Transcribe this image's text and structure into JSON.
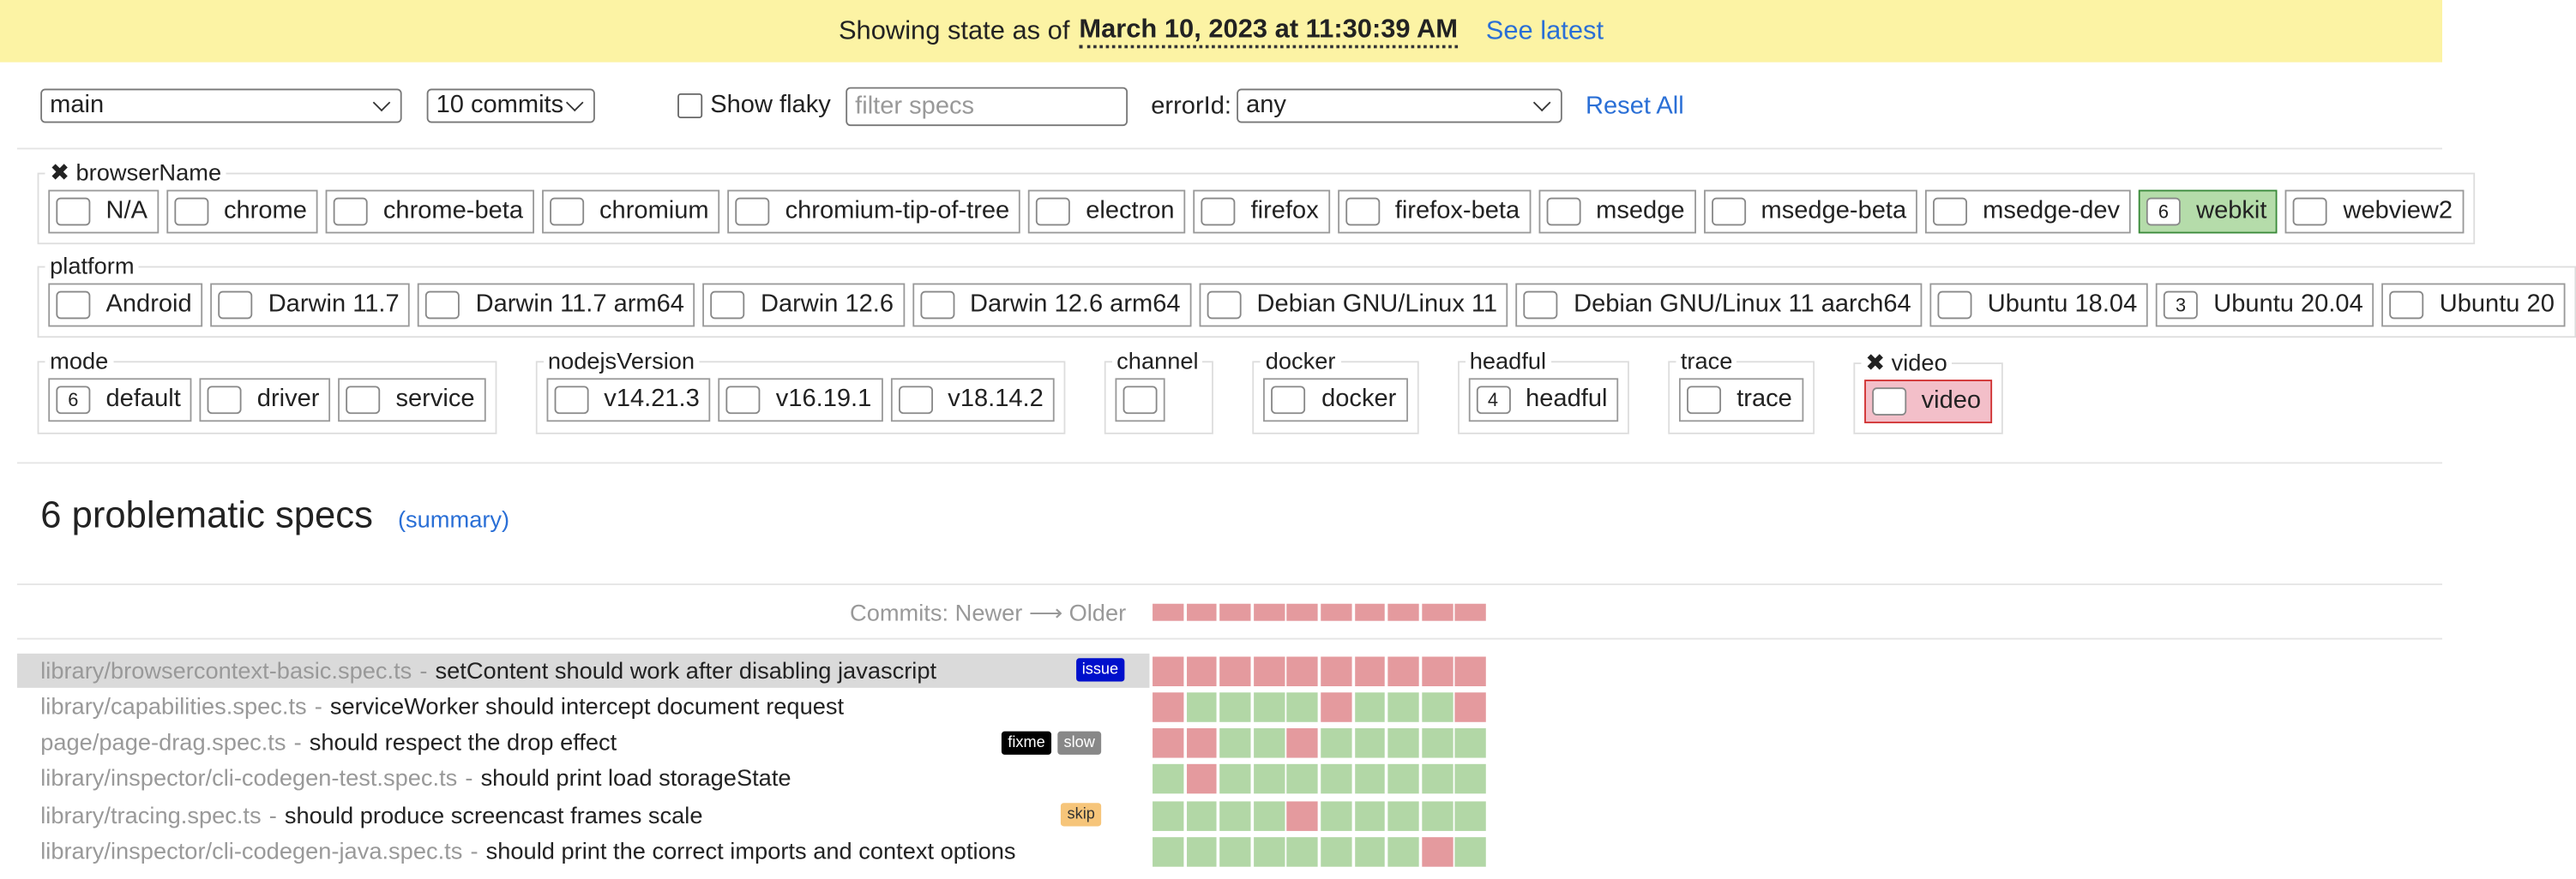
{
  "banner": {
    "prefix": "Showing state as of",
    "timestamp": "March 10, 2023 at 11:30:39 AM",
    "link": "See latest"
  },
  "toolbar": {
    "branch": "main",
    "commits": "10 commits",
    "show_flaky": "Show flaky",
    "filter_placeholder": "filter specs",
    "error_label": "errorId:",
    "error_value": "any",
    "reset": "Reset All"
  },
  "filter_rows": [
    [
      {
        "name": "✖ browserName",
        "options": [
          {
            "label": "N/A"
          },
          {
            "label": "chrome"
          },
          {
            "label": "chrome-beta"
          },
          {
            "label": "chromium"
          },
          {
            "label": "chromium-tip-of-tree"
          },
          {
            "label": "electron"
          },
          {
            "label": "firefox"
          },
          {
            "label": "firefox-beta"
          },
          {
            "label": "msedge"
          },
          {
            "label": "msedge-beta"
          },
          {
            "label": "msedge-dev"
          },
          {
            "label": "webkit",
            "count": 6,
            "state": "include"
          },
          {
            "label": "webview2"
          }
        ]
      }
    ],
    [
      {
        "name": "platform",
        "options": [
          {
            "label": "Android"
          },
          {
            "label": "Darwin 11.7"
          },
          {
            "label": "Darwin 11.7 arm64"
          },
          {
            "label": "Darwin 12.6"
          },
          {
            "label": "Darwin 12.6 arm64"
          },
          {
            "label": "Debian GNU/Linux 11"
          },
          {
            "label": "Debian GNU/Linux 11 aarch64"
          },
          {
            "label": "Ubuntu 18.04"
          },
          {
            "label": "Ubuntu 20.04",
            "count": 3
          },
          {
            "label": "Ubuntu 20"
          }
        ]
      }
    ],
    [
      {
        "name": "mode",
        "options": [
          {
            "label": "default",
            "count": 6
          },
          {
            "label": "driver"
          },
          {
            "label": "service"
          }
        ]
      },
      {
        "name": "nodejsVersion",
        "options": [
          {
            "label": "v14.21.3"
          },
          {
            "label": "v16.19.1"
          },
          {
            "label": "v18.14.2"
          }
        ]
      },
      {
        "name": "channel",
        "options": [
          {}
        ]
      },
      {
        "name": "docker",
        "options": [
          {
            "label": "docker"
          }
        ]
      },
      {
        "name": "headful",
        "options": [
          {
            "label": "headful",
            "count": 4
          }
        ]
      },
      {
        "name": "trace",
        "options": [
          {
            "label": "trace"
          }
        ]
      },
      {
        "name": "✖ video",
        "options": [
          {
            "label": "video",
            "state": "exclude"
          }
        ]
      }
    ]
  ],
  "specs": {
    "heading": "6 problematic specs",
    "summary": "(summary)",
    "commits_label": "Commits: Newer ⟶ Older",
    "separator": "-",
    "header_cells": [
      "fail",
      "fail",
      "fail",
      "fail",
      "fail",
      "fail",
      "fail",
      "fail",
      "fail",
      "fail"
    ],
    "rows": [
      {
        "file": "library/browsercontext-basic.spec.ts",
        "title": "setContent should work after disabling javascript",
        "tags": [
          {
            "text": "issue",
            "kind": "issue"
          }
        ],
        "selected": true,
        "cells": [
          "fail",
          "fail",
          "fail",
          "fail",
          "fail",
          "fail",
          "fail",
          "fail",
          "fail",
          "fail"
        ]
      },
      {
        "file": "library/capabilities.spec.ts",
        "title": "serviceWorker should intercept document request",
        "tags": [],
        "cells": [
          "fail",
          "pass",
          "pass",
          "pass",
          "pass",
          "fail",
          "pass",
          "pass",
          "pass",
          "fail"
        ]
      },
      {
        "file": "page/page-drag.spec.ts",
        "title": "should respect the drop effect",
        "tags": [
          {
            "text": "fixme",
            "kind": "fixme"
          },
          {
            "text": "slow",
            "kind": "slow"
          }
        ],
        "cells": [
          "fail",
          "fail",
          "pass",
          "pass",
          "fail",
          "pass",
          "pass",
          "pass",
          "pass",
          "pass"
        ]
      },
      {
        "file": "library/inspector/cli-codegen-test.spec.ts",
        "title": "should print load storageState",
        "tags": [],
        "cells": [
          "pass",
          "fail",
          "pass",
          "pass",
          "pass",
          "pass",
          "pass",
          "pass",
          "pass",
          "pass"
        ]
      },
      {
        "file": "library/tracing.spec.ts",
        "title": "should produce screencast frames scale",
        "tags": [
          {
            "text": "skip",
            "kind": "skip"
          }
        ],
        "cells": [
          "pass",
          "pass",
          "pass",
          "pass",
          "fail",
          "pass",
          "pass",
          "pass",
          "pass",
          "pass"
        ]
      },
      {
        "file": "library/inspector/cli-codegen-java.spec.ts",
        "title": "should print the correct imports and context options",
        "tags": [],
        "cells": [
          "pass",
          "pass",
          "pass",
          "pass",
          "pass",
          "pass",
          "pass",
          "pass",
          "fail",
          "pass"
        ]
      }
    ]
  }
}
